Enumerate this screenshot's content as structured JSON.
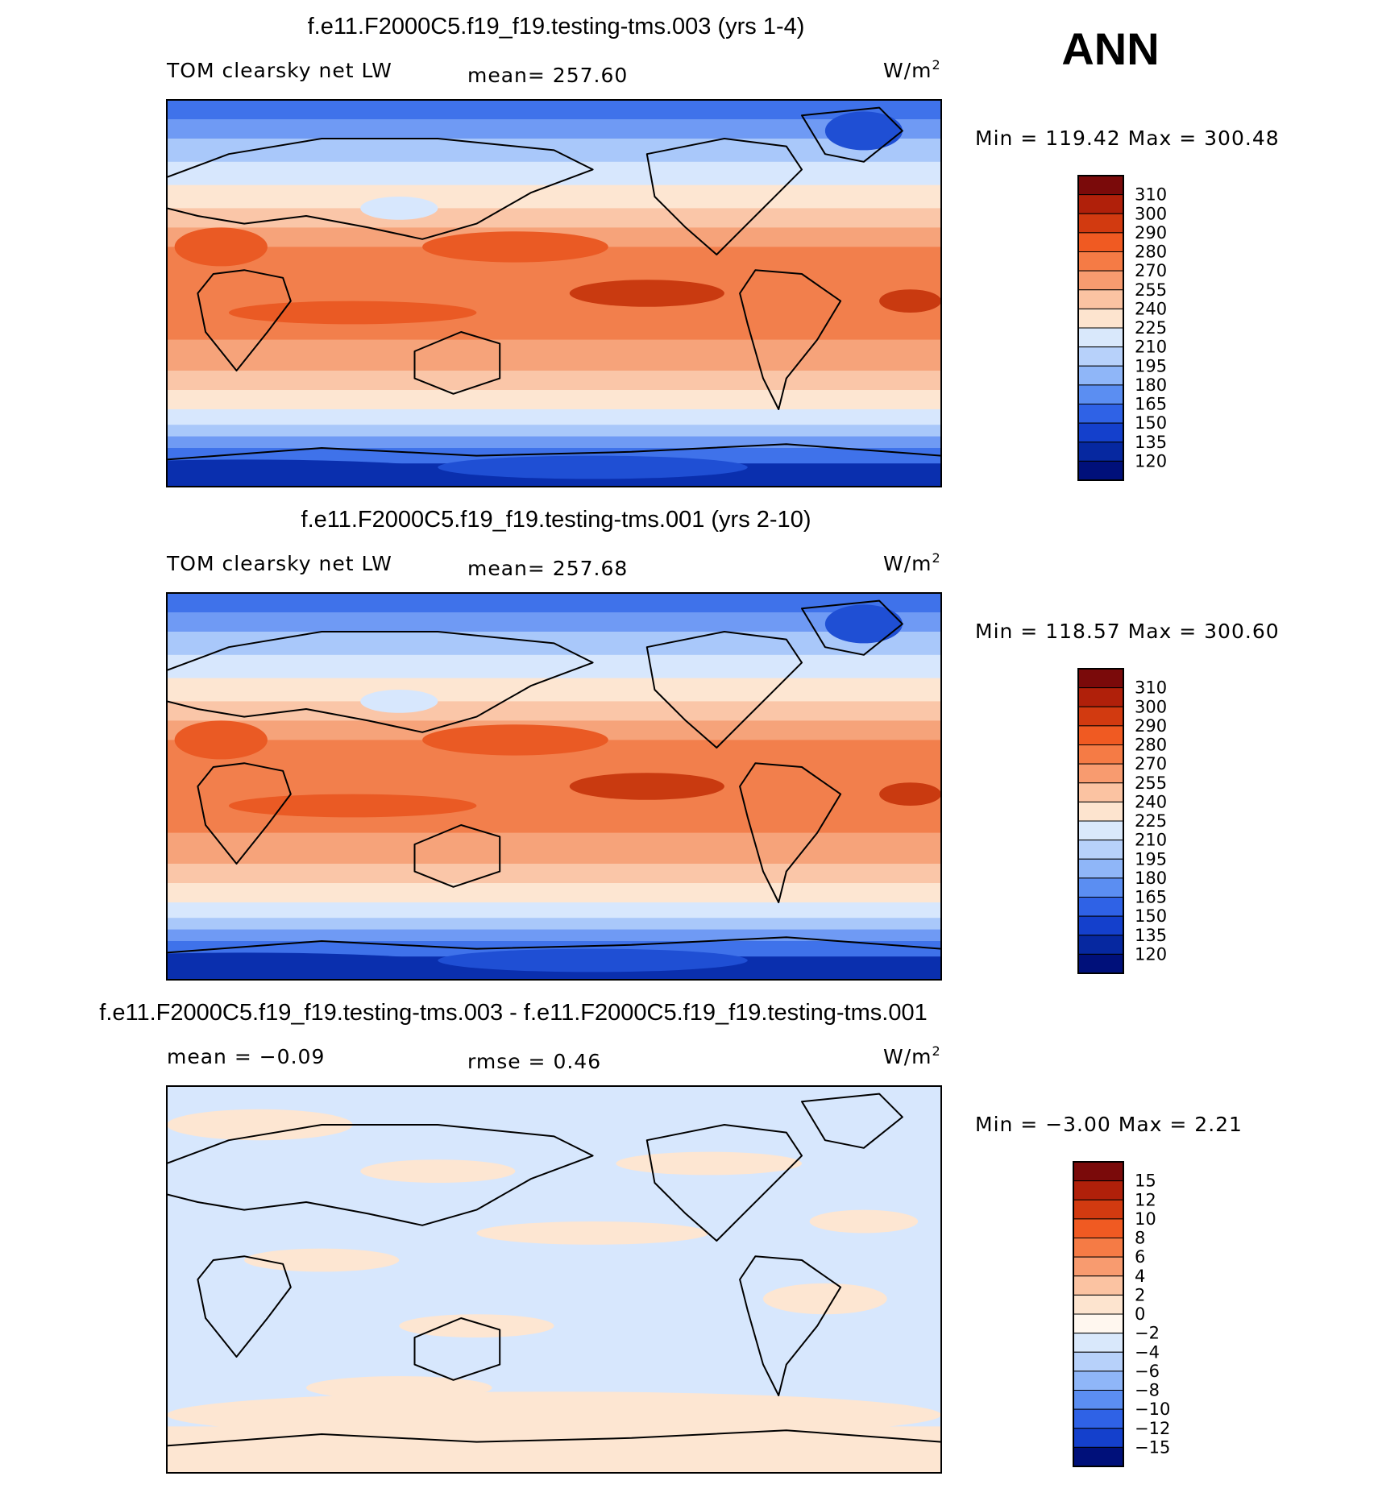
{
  "season": "ANN",
  "panels": [
    {
      "title": "f.e11.F2000C5.f19_f19.testing-tms.003 (yrs 1-4)",
      "left_label": "TOM clearsky net LW",
      "center_label": "mean= 257.60",
      "units": "W/m",
      "units_sup": "2",
      "minmax": "Min = 119.42 Max = 300.48",
      "colorbar": {
        "labels": [
          "310",
          "300",
          "290",
          "280",
          "270",
          "255",
          "240",
          "225",
          "210",
          "195",
          "180",
          "165",
          "150",
          "135",
          "120"
        ],
        "colors": [
          "#7a0a0a",
          "#b0200a",
          "#d23a10",
          "#f05a22",
          "#f57b45",
          "#f89b6f",
          "#fbc3a2",
          "#fde4cf",
          "#d9e8fb",
          "#b7d1fa",
          "#8fb6f8",
          "#5b8ef2",
          "#2f62e6",
          "#1440cc",
          "#0628a0",
          "#00107a"
        ]
      },
      "field_colors": [
        "#0a2fae",
        "#1f4fd4",
        "#3f72ea",
        "#6f9af4",
        "#a9c8fa",
        "#d7e7fd",
        "#fde6d2",
        "#fac6a8",
        "#f6a37a",
        "#f27f4c",
        "#ea5a24",
        "#c93a10"
      ]
    },
    {
      "title": "f.e11.F2000C5.f19_f19.testing-tms.001 (yrs 2-10)",
      "left_label": "TOM clearsky net LW",
      "center_label": "mean= 257.68",
      "units": "W/m",
      "units_sup": "2",
      "minmax": "Min = 118.57 Max = 300.60",
      "colorbar": {
        "labels": [
          "310",
          "300",
          "290",
          "280",
          "270",
          "255",
          "240",
          "225",
          "210",
          "195",
          "180",
          "165",
          "150",
          "135",
          "120"
        ],
        "colors": [
          "#7a0a0a",
          "#b0200a",
          "#d23a10",
          "#f05a22",
          "#f57b45",
          "#f89b6f",
          "#fbc3a2",
          "#fde4cf",
          "#d9e8fb",
          "#b7d1fa",
          "#8fb6f8",
          "#5b8ef2",
          "#2f62e6",
          "#1440cc",
          "#0628a0",
          "#00107a"
        ]
      },
      "field_colors": [
        "#0a2fae",
        "#1f4fd4",
        "#3f72ea",
        "#6f9af4",
        "#a9c8fa",
        "#d7e7fd",
        "#fde6d2",
        "#fac6a8",
        "#f6a37a",
        "#f27f4c",
        "#ea5a24",
        "#c93a10"
      ]
    },
    {
      "title": "f.e11.F2000C5.f19_f19.testing-tms.003 - f.e11.F2000C5.f19_f19.testing-tms.001",
      "left_label": "mean =   −0.09",
      "center_label": "rmse =    0.46",
      "units": "W/m",
      "units_sup": "2",
      "minmax": "Min =  −3.00 Max =    2.21",
      "colorbar": {
        "labels": [
          "15",
          "12",
          "10",
          "8",
          "6",
          "4",
          "2",
          "0",
          "−2",
          "−4",
          "−6",
          "−8",
          "−10",
          "−12",
          "−15"
        ],
        "colors": [
          "#7a0a0a",
          "#b0200a",
          "#d23a10",
          "#f05a22",
          "#f57b45",
          "#f89b6f",
          "#fbc3a2",
          "#fde4cf",
          "#fff7ef",
          "#d9e8fb",
          "#b7d1fa",
          "#8fb6f8",
          "#5b8ef2",
          "#2f62e6",
          "#1440cc",
          "#00107a"
        ]
      },
      "field_colors": [
        "#fde6d2",
        "#d7e7fd"
      ]
    }
  ]
}
